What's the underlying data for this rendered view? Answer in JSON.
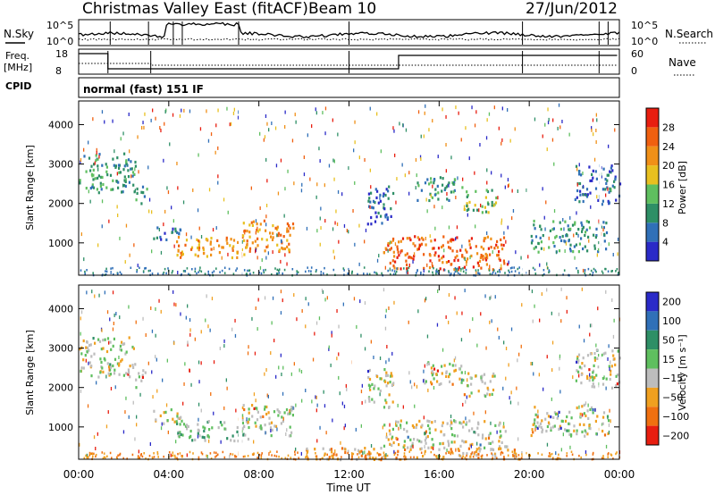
{
  "header": {
    "title": "Christmas Valley East (fitACF)",
    "beam": "Beam 10",
    "date": "27/Jun/2012"
  },
  "noise_panel": {
    "left_label": "N.Sky",
    "right_label": "N.Search",
    "left_ticks": [
      "10^5",
      "10^0"
    ],
    "right_ticks": [
      "10^5",
      "10^0"
    ]
  },
  "freq_panel": {
    "left_label_1": "Freq.",
    "left_label_2": "[MHz]",
    "right_label": "Nave",
    "left_ticks": [
      "18",
      "8"
    ],
    "right_ticks": [
      "60",
      "0"
    ]
  },
  "cpid_panel": {
    "label": "CPID",
    "text": "normal (fast) 151 IF"
  },
  "colors": {
    "power_scale": [
      "#2a2ac8",
      "#3070b8",
      "#2e8f66",
      "#5fbf5f",
      "#e8c020",
      "#f09018",
      "#f06010",
      "#e81e10"
    ],
    "velocity_scale": [
      "#2a2ac8",
      "#3070b8",
      "#2e8f66",
      "#5fbf5f",
      "#bdbdbd",
      "#f0a020",
      "#f07010",
      "#e81e10"
    ]
  },
  "chart_data": [
    {
      "type": "heatmap",
      "name": "power",
      "ylabel": "Slant Range [km]",
      "xlabel": "",
      "ylim": [
        180,
        4600
      ],
      "yticks": [
        1000,
        2000,
        3000,
        4000
      ],
      "xticks": [
        "00:00",
        "04:00",
        "08:00",
        "12:00",
        "16:00",
        "20:00",
        "00:00"
      ],
      "colorbar": {
        "label": "Power [dB]",
        "ticks": [
          "4",
          "8",
          "12",
          "16",
          "20",
          "24",
          "28"
        ]
      },
      "regions": [
        {
          "t0": 0.0,
          "t1": 2.5,
          "r0": 2300,
          "r1": 3300,
          "level": 2
        },
        {
          "t0": 2.5,
          "t1": 3.0,
          "r0": 2000,
          "r1": 2500,
          "level": 2
        },
        {
          "t0": 3.3,
          "t1": 4.5,
          "r0": 1100,
          "r1": 1500,
          "level": 1
        },
        {
          "t0": 4.3,
          "t1": 7.5,
          "r0": 650,
          "r1": 1200,
          "level": 5
        },
        {
          "t0": 7.0,
          "t1": 9.5,
          "r0": 800,
          "r1": 1600,
          "level": 5
        },
        {
          "t0": 12.8,
          "t1": 14.0,
          "r0": 1500,
          "r1": 2500,
          "level": 1
        },
        {
          "t0": 13.5,
          "t1": 19.0,
          "r0": 350,
          "r1": 1200,
          "level": 6
        },
        {
          "t0": 15.0,
          "t1": 17.0,
          "r0": 2100,
          "r1": 2700,
          "level": 2
        },
        {
          "t0": 17.0,
          "t1": 18.5,
          "r0": 1800,
          "r1": 2400,
          "level": 3
        },
        {
          "t0": 20.0,
          "t1": 23.5,
          "r0": 800,
          "r1": 1600,
          "level": 2
        },
        {
          "t0": 22.0,
          "t1": 24.0,
          "r0": 2000,
          "r1": 3000,
          "level": 1
        }
      ]
    },
    {
      "type": "heatmap",
      "name": "velocity",
      "ylabel": "Slant Range [km]",
      "xlabel": "Time UT",
      "ylim": [
        180,
        4600
      ],
      "yticks": [
        1000,
        2000,
        3000,
        4000
      ],
      "xticks": [
        "00:00",
        "04:00",
        "08:00",
        "12:00",
        "16:00",
        "20:00",
        "00:00"
      ],
      "colorbar": {
        "label": "Velocity [m s⁻¹]",
        "ticks": [
          "200",
          "100",
          "50",
          "15",
          "−15",
          "−50",
          "−100",
          "−200"
        ]
      },
      "regions": [
        {
          "t0": 0.0,
          "t1": 2.5,
          "r0": 2300,
          "r1": 3300,
          "level": 4
        },
        {
          "t0": 2.5,
          "t1": 3.0,
          "r0": 2000,
          "r1": 2500,
          "level": 4
        },
        {
          "t0": 3.3,
          "t1": 4.5,
          "r0": 1100,
          "r1": 1500,
          "level": 4
        },
        {
          "t0": 4.3,
          "t1": 7.5,
          "r0": 650,
          "r1": 1200,
          "level": 3
        },
        {
          "t0": 7.0,
          "t1": 9.5,
          "r0": 800,
          "r1": 1600,
          "level": 4
        },
        {
          "t0": 12.8,
          "t1": 14.0,
          "r0": 1500,
          "r1": 2500,
          "level": 4
        },
        {
          "t0": 13.5,
          "t1": 19.0,
          "r0": 500,
          "r1": 1200,
          "level": 4
        },
        {
          "t0": 10.0,
          "t1": 20.0,
          "r0": 200,
          "r1": 500,
          "level": 5
        },
        {
          "t0": 15.0,
          "t1": 17.0,
          "r0": 2100,
          "r1": 2700,
          "level": 4
        },
        {
          "t0": 17.0,
          "t1": 18.5,
          "r0": 1800,
          "r1": 2400,
          "level": 4
        },
        {
          "t0": 20.0,
          "t1": 23.5,
          "r0": 800,
          "r1": 1600,
          "level": 4
        },
        {
          "t0": 22.0,
          "t1": 24.0,
          "r0": 2000,
          "r1": 3000,
          "level": 4
        }
      ]
    }
  ]
}
